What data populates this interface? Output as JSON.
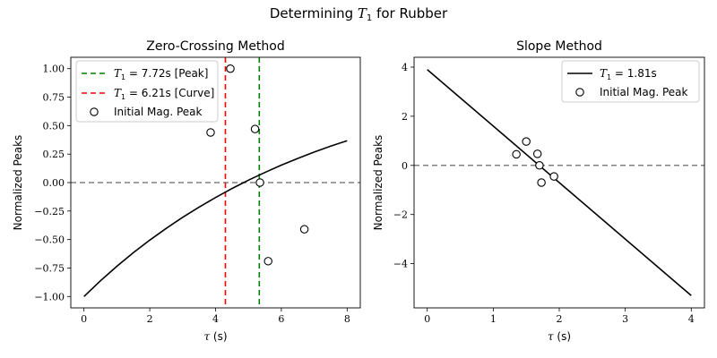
{
  "figure": {
    "title": "Determining T1 for Rubber"
  },
  "chart_data": [
    {
      "type": "line",
      "title": "Zero-Crossing Method",
      "xlabel": "τ (s)",
      "ylabel": "Normalized Peaks",
      "xlim": [
        -0.4,
        8.4
      ],
      "ylim": [
        -1.1,
        1.1
      ],
      "xticks": [
        0,
        2,
        4,
        6,
        8
      ],
      "yticks": [
        -1.0,
        -0.75,
        -0.5,
        -0.25,
        0.0,
        0.25,
        0.5,
        0.75,
        1.0
      ],
      "ytick_labels": [
        "−1.00",
        "−0.75",
        "−0.50",
        "−0.25",
        "0.00",
        "0.25",
        "0.50",
        "0.75",
        "1.00"
      ],
      "xtick_labels": [
        "0",
        "2",
        "4",
        "6",
        "8"
      ],
      "curve": {
        "x": [
          0,
          0.5,
          1,
          1.5,
          2,
          2.5,
          3,
          3.5,
          4,
          4.5,
          5,
          5.5,
          6,
          6.5,
          7,
          7.5,
          8
        ],
        "y": [
          -1.0,
          -0.863,
          -0.735,
          -0.616,
          -0.505,
          -0.402,
          -0.305,
          -0.215,
          -0.131,
          -0.052,
          0.021,
          0.089,
          0.153,
          0.212,
          0.268,
          0.32,
          0.368
        ]
      },
      "vlines": [
        {
          "x": 5.33,
          "color": "#008000",
          "label": "= 7.72s [Peak]"
        },
        {
          "x": 4.3,
          "color": "#ff0000",
          "label": "= 6.21s [Curve]"
        }
      ],
      "hline": {
        "y": 0,
        "color": "#808080"
      },
      "points": {
        "name": "Initial Mag. Peak",
        "x": [
          3.85,
          4.45,
          5.2,
          5.35,
          5.6,
          6.7
        ],
        "y": [
          0.44,
          1.0,
          0.47,
          0.0,
          -0.69,
          -0.41
        ]
      },
      "legend_position": "upper-left"
    },
    {
      "type": "line",
      "title": "Slope Method",
      "xlabel": "τ (s)",
      "ylabel": "Normalized Peaks",
      "xlim": [
        -0.2,
        4.2
      ],
      "ylim": [
        -5.8,
        4.4
      ],
      "xticks": [
        0,
        1,
        2,
        3,
        4
      ],
      "yticks": [
        -4,
        -2,
        0,
        2,
        4
      ],
      "ytick_labels": [
        "−4",
        "−2",
        "0",
        "2",
        "4"
      ],
      "xtick_labels": [
        "0",
        "1",
        "2",
        "3",
        "4"
      ],
      "fit_line": {
        "label": "= 1.81s",
        "x": [
          0,
          4
        ],
        "y": [
          3.9,
          -5.3
        ]
      },
      "hline": {
        "y": 0,
        "color": "#808080"
      },
      "points": {
        "name": "Initial Mag. Peak",
        "x": [
          1.35,
          1.5,
          1.67,
          1.7,
          1.73,
          1.92
        ],
        "y": [
          0.45,
          0.97,
          0.47,
          0.0,
          -0.7,
          -0.45
        ]
      },
      "legend_position": "upper-right"
    }
  ]
}
